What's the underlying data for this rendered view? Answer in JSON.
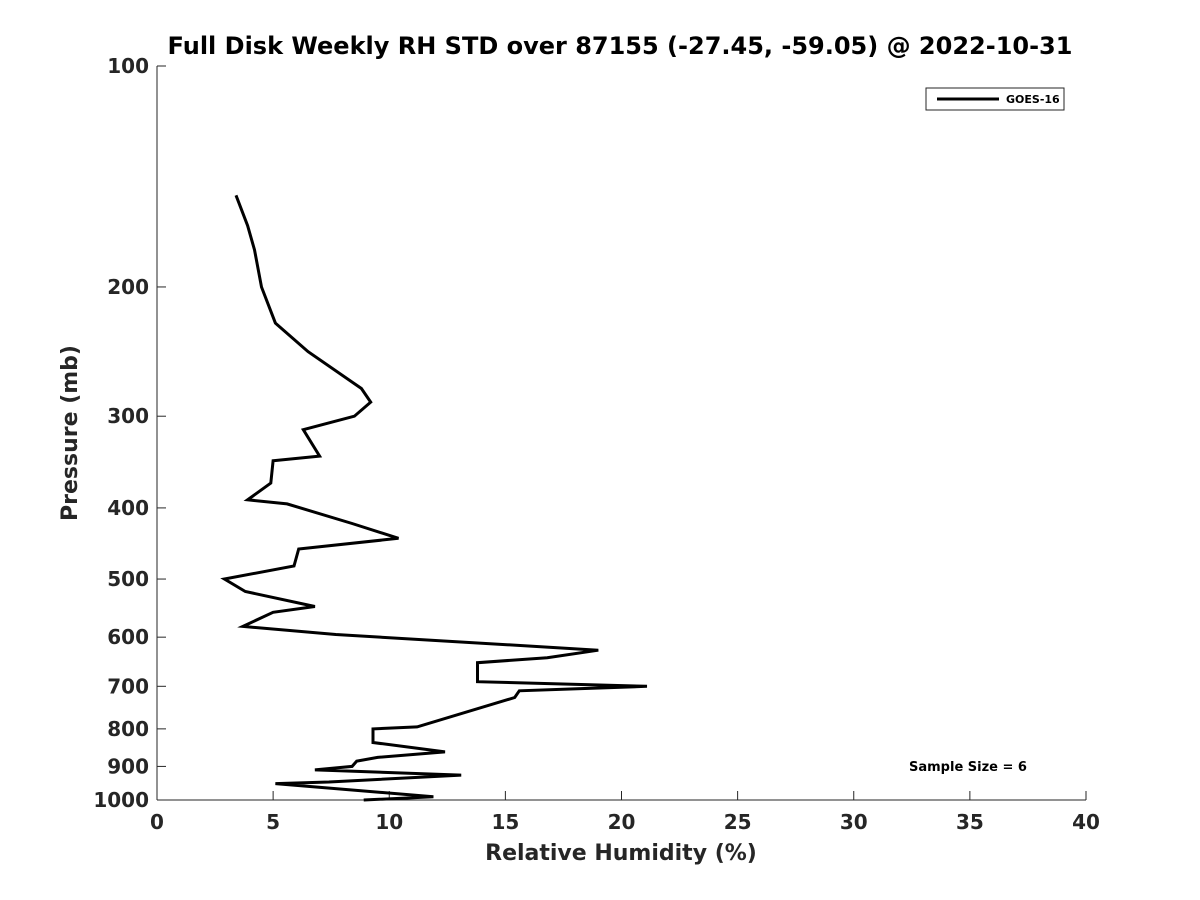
{
  "chart_data": {
    "type": "line",
    "title": "Full Disk Weekly RH STD over 87155 (-27.45, -59.05) @ 2022-10-31",
    "xlabel": "Relative Humidity (%)",
    "ylabel": "Pressure (mb)",
    "xlim": [
      0,
      40
    ],
    "ylim": [
      100,
      1000
    ],
    "yscale": "log",
    "y_reversed": true,
    "grid": false,
    "legend_position": "top-right",
    "x_ticks": [
      0,
      5,
      10,
      15,
      20,
      25,
      30,
      35,
      40
    ],
    "y_ticks": [
      100,
      200,
      300,
      400,
      500,
      600,
      700,
      800,
      900,
      1000
    ],
    "annotation": "Sample Size = 6",
    "series": [
      {
        "name": "GOES-16",
        "color": "#000000",
        "x": [
          3.4,
          3.9,
          4.2,
          4.5,
          5.1,
          6.5,
          8.8,
          9.2,
          8.5,
          6.3,
          7.0,
          5.0,
          4.9,
          3.9,
          5.6,
          8.4,
          10.4,
          6.1,
          5.9,
          2.9,
          3.8,
          6.8,
          5.0,
          3.7,
          7.7,
          19.0,
          16.8,
          13.8,
          13.8,
          21.1,
          15.6,
          15.4,
          11.2,
          9.3,
          9.3,
          12.4,
          9.5,
          8.6,
          8.4,
          6.8,
          13.1,
          7.4,
          5.1,
          11.9,
          8.9
        ],
        "y": [
          150,
          165,
          178,
          200,
          224,
          245,
          275,
          287,
          300,
          313,
          340,
          345,
          370,
          390,
          395,
          420,
          440,
          455,
          480,
          500,
          520,
          545,
          555,
          580,
          595,
          625,
          640,
          650,
          690,
          700,
          710,
          725,
          795,
          800,
          835,
          860,
          875,
          885,
          900,
          910,
          925,
          945,
          950,
          990,
          1000
        ]
      }
    ]
  }
}
